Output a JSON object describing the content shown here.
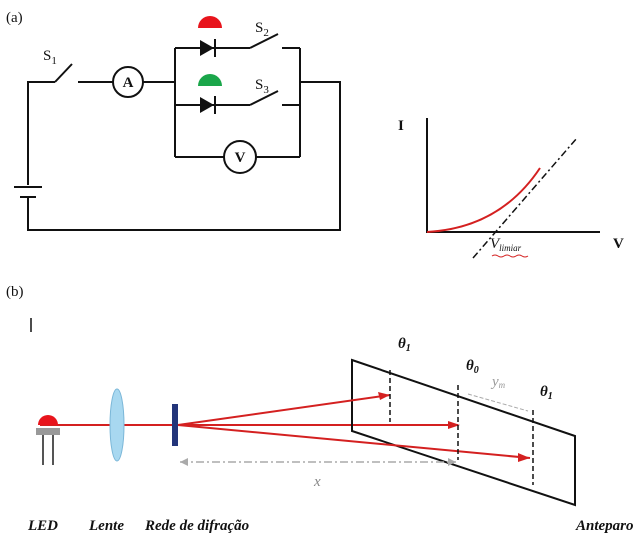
{
  "panel_a": {
    "label": "(a)",
    "circuit": {
      "s1": {
        "main": "S",
        "sub": "1"
      },
      "ammeter": "A",
      "s2": {
        "main": "S",
        "sub": "2"
      },
      "s3": {
        "main": "S",
        "sub": "3"
      },
      "voltmeter": "V"
    },
    "graph": {
      "y_axis": "I",
      "x_axis": "V",
      "threshold": {
        "main": "V",
        "sub": "limiar"
      }
    }
  },
  "panel_b": {
    "label": "(b)",
    "theta_left": {
      "main": "θ",
      "sub": "1"
    },
    "theta_center": {
      "main": "θ",
      "sub": "0"
    },
    "theta_right": {
      "main": "θ",
      "sub": "1"
    },
    "y_m": {
      "main": "y",
      "sub": "m"
    },
    "distance": "x",
    "captions": [
      "LED",
      "Lente",
      "Rede de difração",
      "Anteparo"
    ]
  }
}
